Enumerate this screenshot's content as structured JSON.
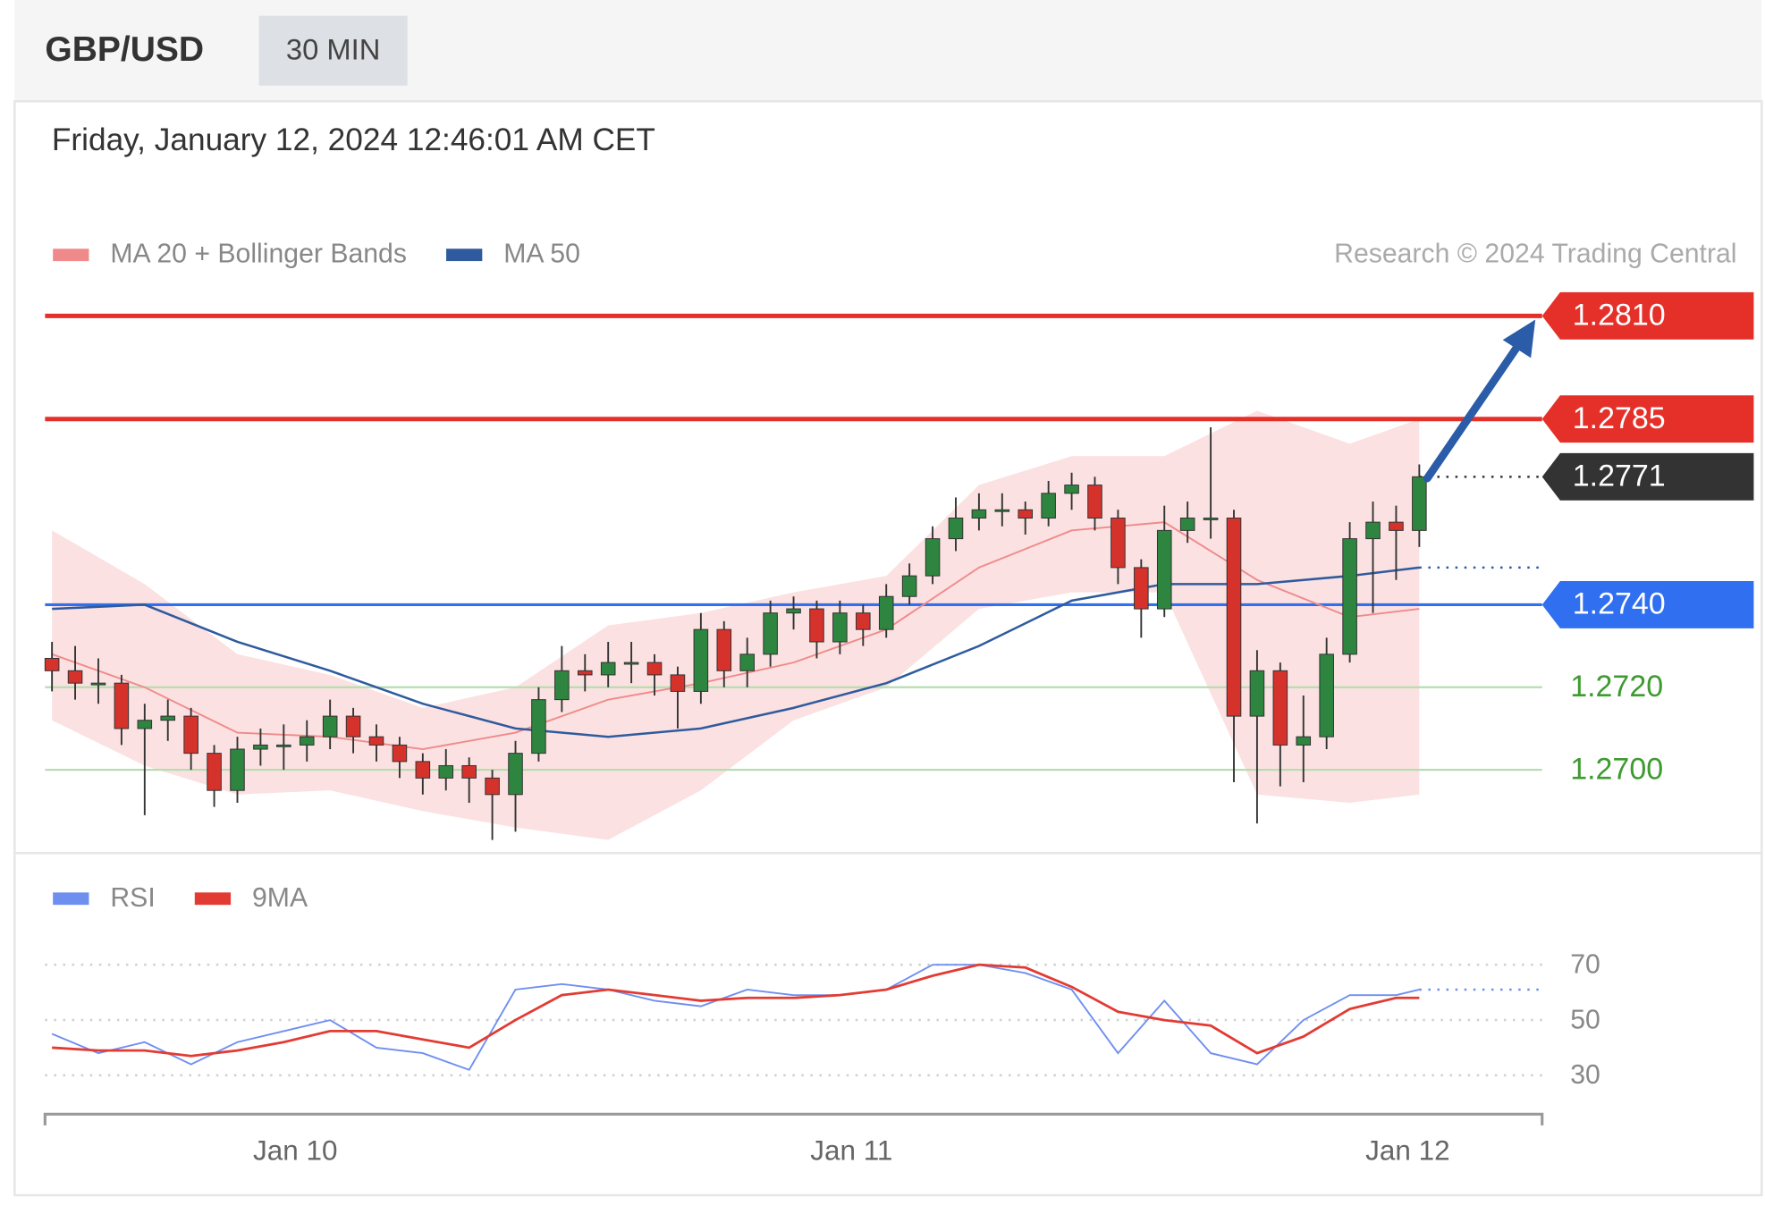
{
  "header": {
    "symbol": "GBP/USD",
    "interval": "30 MIN",
    "timestamp": "Friday, January 12, 2024 12:46:01 AM CET"
  },
  "chart_data": [
    {
      "type": "candlestick",
      "credit": "Research © 2024 Trading Central",
      "xlim": [
        -10.8,
        53.8
      ],
      "ylim": [
        1.2682,
        1.2817
      ],
      "up_color": "#2e8540",
      "down_color": "#d6322c",
      "x": [
        -10.5,
        -9.5,
        -8.5,
        -7.5,
        -6.5,
        -5.5,
        -4.5,
        -3.5,
        -2.5,
        -1.5,
        -0.5,
        0.5,
        1.5,
        2.5,
        3.5,
        4.5,
        5.5,
        6.5,
        7.5,
        8.5,
        9.5,
        10.5,
        11.5,
        12.5,
        13.5,
        14.5,
        15.5,
        16.5,
        17.5,
        18.5,
        19.5,
        20.5,
        21.5,
        22.5,
        23.5,
        24.5,
        25.5,
        26.5,
        27.5,
        28.5,
        29.5,
        30.5,
        31.5,
        32.5,
        33.5,
        34.5,
        35.5,
        36.5,
        37.5,
        38.5,
        39.5,
        40.5,
        41.5,
        42.5,
        43.5,
        44.5,
        45.5,
        46.5,
        47.5,
        48.5
      ],
      "open": [
        1.2727,
        1.2724,
        1.2721,
        1.2721,
        1.271,
        1.2712,
        1.2713,
        1.2704,
        1.2695,
        1.2705,
        1.2706,
        1.2706,
        1.2708,
        1.2713,
        1.2708,
        1.2706,
        1.2702,
        1.2698,
        1.2701,
        1.2698,
        1.2694,
        1.2704,
        1.2717,
        1.2724,
        1.2723,
        1.2726,
        1.2726,
        1.2723,
        1.2719,
        1.2734,
        1.2724,
        1.2728,
        1.2738,
        1.2739,
        1.2731,
        1.2738,
        1.2734,
        1.2742,
        1.2747,
        1.2756,
        1.2761,
        1.2763,
        1.2763,
        1.2761,
        1.2767,
        1.2769,
        1.2761,
        1.2749,
        1.2739,
        1.2758,
        1.2761,
        1.2761,
        1.2713,
        1.2724,
        1.2706,
        1.2708,
        1.2728,
        1.2756,
        1.276,
        1.2758
      ],
      "high": [
        1.2731,
        1.273,
        1.2727,
        1.2723,
        1.2716,
        1.2717,
        1.2715,
        1.2706,
        1.2708,
        1.271,
        1.2711,
        1.2712,
        1.2717,
        1.2715,
        1.2711,
        1.2708,
        1.2704,
        1.2705,
        1.2703,
        1.27,
        1.2707,
        1.272,
        1.273,
        1.2728,
        1.2731,
        1.2731,
        1.2728,
        1.2725,
        1.2738,
        1.2736,
        1.2732,
        1.2741,
        1.2742,
        1.2741,
        1.2741,
        1.274,
        1.2745,
        1.275,
        1.2759,
        1.2766,
        1.2767,
        1.2767,
        1.2765,
        1.277,
        1.2772,
        1.2771,
        1.2763,
        1.2751,
        1.2764,
        1.2765,
        1.2783,
        1.2763,
        1.2729,
        1.2726,
        1.2718,
        1.2732,
        1.276,
        1.2765,
        1.2764,
        1.2774
      ],
      "low": [
        1.2719,
        1.2717,
        1.2716,
        1.2706,
        1.2689,
        1.2707,
        1.27,
        1.2691,
        1.2692,
        1.2701,
        1.27,
        1.2702,
        1.2705,
        1.2704,
        1.2702,
        1.2698,
        1.2694,
        1.2695,
        1.2692,
        1.2683,
        1.2685,
        1.2702,
        1.2714,
        1.2719,
        1.272,
        1.2721,
        1.2718,
        1.271,
        1.2716,
        1.272,
        1.272,
        1.2725,
        1.2734,
        1.2727,
        1.2728,
        1.273,
        1.2732,
        1.274,
        1.2745,
        1.2753,
        1.2758,
        1.2759,
        1.2757,
        1.2759,
        1.2763,
        1.2758,
        1.2745,
        1.2732,
        1.2737,
        1.2755,
        1.2756,
        1.2697,
        1.2687,
        1.2696,
        1.2697,
        1.2705,
        1.2726,
        1.2738,
        1.2746,
        1.2754
      ],
      "close": [
        1.2724,
        1.2721,
        1.2721,
        1.271,
        1.2712,
        1.2713,
        1.2704,
        1.2695,
        1.2705,
        1.2706,
        1.2706,
        1.2708,
        1.2713,
        1.2708,
        1.2706,
        1.2702,
        1.2698,
        1.2701,
        1.2698,
        1.2694,
        1.2704,
        1.2717,
        1.2724,
        1.2723,
        1.2726,
        1.2726,
        1.2723,
        1.2719,
        1.2734,
        1.2724,
        1.2728,
        1.2738,
        1.2739,
        1.2731,
        1.2738,
        1.2734,
        1.2742,
        1.2747,
        1.2756,
        1.2761,
        1.2763,
        1.2763,
        1.2761,
        1.2767,
        1.2769,
        1.2761,
        1.2749,
        1.2739,
        1.2758,
        1.2761,
        1.2761,
        1.2713,
        1.2724,
        1.2706,
        1.2708,
        1.2728,
        1.2756,
        1.276,
        1.2758,
        1.2771
      ],
      "series": [
        {
          "name": "MA 20 + Bollinger Bands",
          "color": "#f08a8a",
          "band_color": "#fbe1e1",
          "x": [
            -10.5,
            -6.5,
            -2.5,
            1.5,
            5.5,
            9.5,
            13.5,
            17.5,
            21.5,
            25.5,
            29.5,
            33.5,
            37.5,
            41.5,
            45.5,
            48.5
          ],
          "values": [
            1.2728,
            1.272,
            1.2709,
            1.2708,
            1.2705,
            1.2709,
            1.2717,
            1.2721,
            1.2726,
            1.2734,
            1.2749,
            1.2758,
            1.276,
            1.2746,
            1.2737,
            1.2739
          ],
          "upper": [
            1.2758,
            1.2745,
            1.2728,
            1.2723,
            1.2715,
            1.272,
            1.2735,
            1.2738,
            1.2743,
            1.2747,
            1.2769,
            1.2776,
            1.2776,
            1.2787,
            1.2779,
            1.2785
          ],
          "lower": [
            1.2712,
            1.2701,
            1.2694,
            1.2695,
            1.269,
            1.2686,
            1.2683,
            1.2695,
            1.2712,
            1.272,
            1.2739,
            1.2743,
            1.2743,
            1.2694,
            1.2692,
            1.2694
          ]
        },
        {
          "name": "MA 50",
          "color": "#2f5b9e",
          "x": [
            -10.5,
            -6.5,
            -2.5,
            1.5,
            5.5,
            9.5,
            13.5,
            17.5,
            21.5,
            25.5,
            29.5,
            33.5,
            37.5,
            41.5,
            45.5,
            48.5
          ],
          "values": [
            1.2739,
            1.274,
            1.2731,
            1.2724,
            1.2716,
            1.271,
            1.2708,
            1.271,
            1.2715,
            1.2721,
            1.273,
            1.2741,
            1.2745,
            1.2745,
            1.2747,
            1.2749
          ]
        }
      ],
      "levels": [
        {
          "value": 1.281,
          "label": "1.2810",
          "kind": "resistance",
          "color": "#e5302a"
        },
        {
          "value": 1.2785,
          "kind": "resistance",
          "color": "#e5302a"
        },
        {
          "value": 1.2771,
          "kind": "current",
          "color": "#333333"
        },
        {
          "value": 1.274,
          "label": "1.2740",
          "kind": "pivot",
          "color": "#2f6ff0"
        },
        {
          "value": 1.272,
          "label": "1.2720",
          "kind": "support",
          "color": "#3d9b2f"
        },
        {
          "value": 1.27,
          "label": "1.2700",
          "kind": "support",
          "color": "#3d9b2f"
        }
      ]
    },
    {
      "type": "line",
      "xlim": [
        -10.8,
        53.8
      ],
      "xticks": [
        {
          "value": 0,
          "label": "Jan 10"
        },
        {
          "value": 24,
          "label": "Jan 11"
        },
        {
          "value": 48,
          "label": "Jan 12"
        }
      ],
      "ylim": [
        18,
        77
      ],
      "yticks": [
        30,
        50,
        70
      ],
      "grid": true,
      "series": [
        {
          "name": "RSI",
          "color": "#6f8ff0",
          "x": [
            -10.5,
            -8.5,
            -6.5,
            -4.5,
            -2.5,
            -0.5,
            1.5,
            3.5,
            5.5,
            7.5,
            9.5,
            11.5,
            13.5,
            15.5,
            17.5,
            19.5,
            21.5,
            23.5,
            25.5,
            27.5,
            29.5,
            31.5,
            33.5,
            35.5,
            37.5,
            39.5,
            41.5,
            43.5,
            45.5,
            47.5,
            48.5
          ],
          "values": [
            45,
            38,
            42,
            34,
            42,
            46,
            50,
            40,
            38,
            32,
            61,
            63,
            61,
            57,
            55,
            61,
            59,
            59,
            61,
            70,
            70,
            67,
            61,
            38,
            57,
            38,
            34,
            50,
            59,
            59,
            61
          ]
        },
        {
          "name": "9MA",
          "color": "#e23b33",
          "x": [
            -10.5,
            -8.5,
            -6.5,
            -4.5,
            -2.5,
            -0.5,
            1.5,
            3.5,
            5.5,
            7.5,
            9.5,
            11.5,
            13.5,
            15.5,
            17.5,
            19.5,
            21.5,
            23.5,
            25.5,
            27.5,
            29.5,
            31.5,
            33.5,
            35.5,
            37.5,
            39.5,
            41.5,
            43.5,
            45.5,
            47.5,
            48.5
          ],
          "values": [
            40,
            39,
            39,
            37,
            39,
            42,
            46,
            46,
            43,
            40,
            50,
            59,
            61,
            59,
            57,
            58,
            58,
            59,
            61,
            66,
            70,
            69,
            62,
            53,
            50,
            48,
            38,
            44,
            54,
            58,
            58
          ]
        }
      ]
    }
  ]
}
